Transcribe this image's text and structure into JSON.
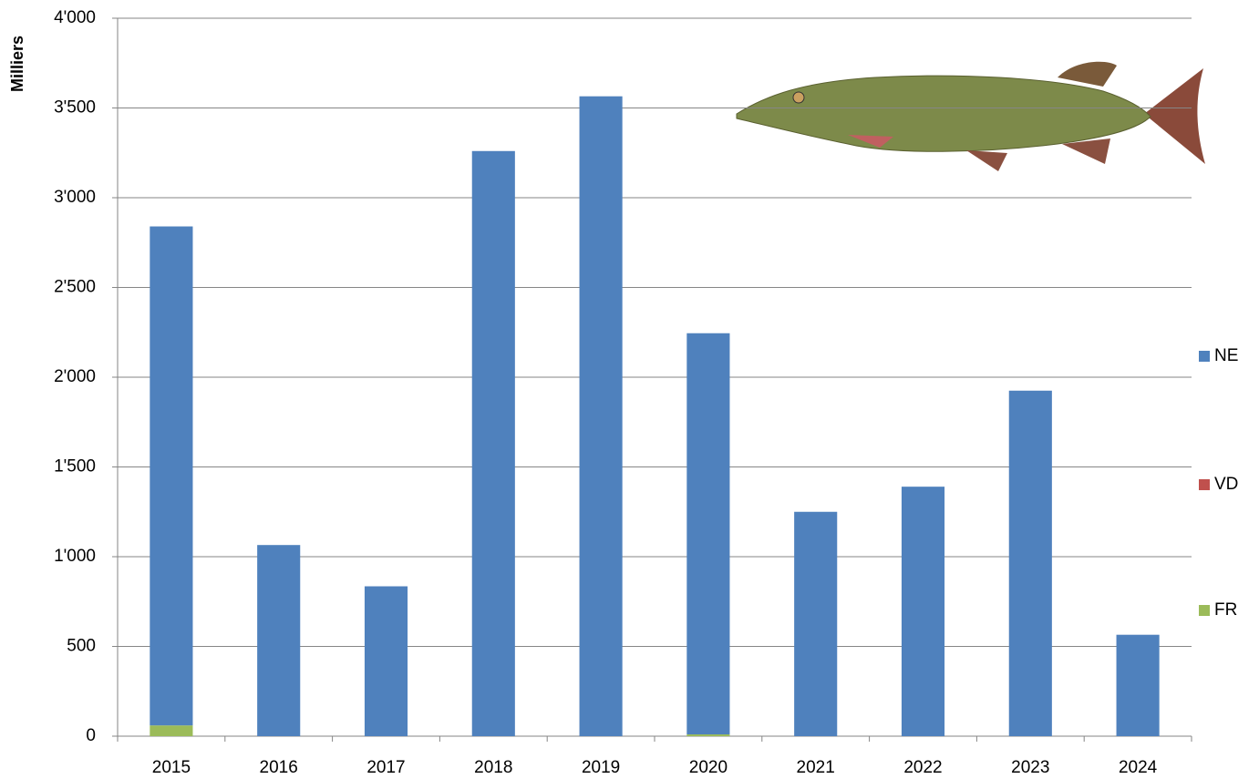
{
  "chart_data": {
    "type": "stacked_bar",
    "y_label": "Milliers",
    "categories": [
      "2015",
      "2016",
      "2017",
      "2018",
      "2019",
      "2020",
      "2021",
      "2022",
      "2023",
      "2024"
    ],
    "series": [
      {
        "name": "FR",
        "color": "#9bbb59",
        "values": [
          60,
          0,
          0,
          0,
          0,
          10,
          0,
          0,
          0,
          0
        ]
      },
      {
        "name": "VD",
        "color": "#c0504d",
        "values": [
          0,
          0,
          0,
          0,
          0,
          0,
          0,
          0,
          0,
          0
        ]
      },
      {
        "name": "NE",
        "color": "#4f81bd",
        "values": [
          2780,
          1065,
          835,
          3260,
          3565,
          2235,
          1250,
          1390,
          1925,
          565
        ]
      }
    ],
    "ylim": [
      0,
      4000
    ],
    "yticks": [
      0,
      500,
      {
        "value": 1000,
        "label": "1'000"
      },
      {
        "value": 1500,
        "label": "1'500"
      },
      {
        "value": 2000,
        "label": "2'000"
      },
      {
        "value": 2500,
        "label": "2'500"
      },
      {
        "value": 3000,
        "label": "3'000"
      },
      {
        "value": 3500,
        "label": "3'500"
      },
      {
        "value": 4000,
        "label": "4'000"
      }
    ],
    "grid": true,
    "legend": "right"
  }
}
